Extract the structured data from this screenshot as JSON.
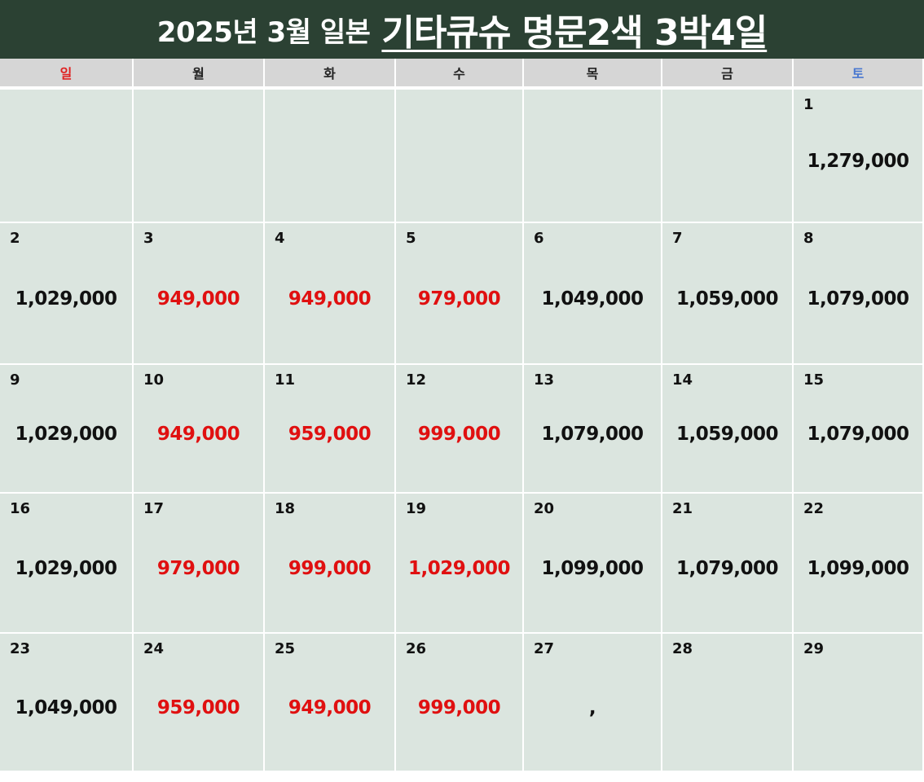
{
  "header": {
    "title": "2025년 3월 일본",
    "title_highlight": "기타큐슈 명문2색 3박4일"
  },
  "weekdays": [
    "일",
    "월",
    "화",
    "수",
    "목",
    "금",
    "토"
  ],
  "colors": {
    "header_bg": "#2b4133",
    "cell_bg": "#dbe5df",
    "weekday_bg": "#d6d6d6",
    "low_price": "#e01010",
    "sunday": "#e02020",
    "saturday": "#4a78d0"
  },
  "weeks": [
    [
      {
        "day": "",
        "price": "",
        "low": false
      },
      {
        "day": "",
        "price": "",
        "low": false
      },
      {
        "day": "",
        "price": "",
        "low": false
      },
      {
        "day": "",
        "price": "",
        "low": false
      },
      {
        "day": "",
        "price": "",
        "low": false
      },
      {
        "day": "",
        "price": "",
        "low": false
      },
      {
        "day": "1",
        "price": "1,279,000",
        "low": false
      }
    ],
    [
      {
        "day": "2",
        "price": "1,029,000",
        "low": false
      },
      {
        "day": "3",
        "price": "949,000",
        "low": true
      },
      {
        "day": "4",
        "price": "949,000",
        "low": true
      },
      {
        "day": "5",
        "price": "979,000",
        "low": true
      },
      {
        "day": "6",
        "price": "1,049,000",
        "low": false
      },
      {
        "day": "7",
        "price": "1,059,000",
        "low": false
      },
      {
        "day": "8",
        "price": "1,079,000",
        "low": false
      }
    ],
    [
      {
        "day": "9",
        "price": "1,029,000",
        "low": false
      },
      {
        "day": "10",
        "price": "949,000",
        "low": true
      },
      {
        "day": "11",
        "price": "959,000",
        "low": true
      },
      {
        "day": "12",
        "price": "999,000",
        "low": true
      },
      {
        "day": "13",
        "price": "1,079,000",
        "low": false
      },
      {
        "day": "14",
        "price": "1,059,000",
        "low": false
      },
      {
        "day": "15",
        "price": "1,079,000",
        "low": false
      }
    ],
    [
      {
        "day": "16",
        "price": "1,029,000",
        "low": false
      },
      {
        "day": "17",
        "price": "979,000",
        "low": true
      },
      {
        "day": "18",
        "price": "999,000",
        "low": true
      },
      {
        "day": "19",
        "price": "1,029,000",
        "low": true
      },
      {
        "day": "20",
        "price": "1,099,000",
        "low": false
      },
      {
        "day": "21",
        "price": "1,079,000",
        "low": false
      },
      {
        "day": "22",
        "price": "1,099,000",
        "low": false
      }
    ],
    [
      {
        "day": "23",
        "price": "1,049,000",
        "low": false
      },
      {
        "day": "24",
        "price": "959,000",
        "low": true
      },
      {
        "day": "25",
        "price": "949,000",
        "low": true
      },
      {
        "day": "26",
        "price": "999,000",
        "low": true
      },
      {
        "day": "27",
        "price": ",",
        "low": false
      },
      {
        "day": "28",
        "price": "",
        "low": false
      },
      {
        "day": "29",
        "price": "",
        "low": false
      }
    ]
  ]
}
